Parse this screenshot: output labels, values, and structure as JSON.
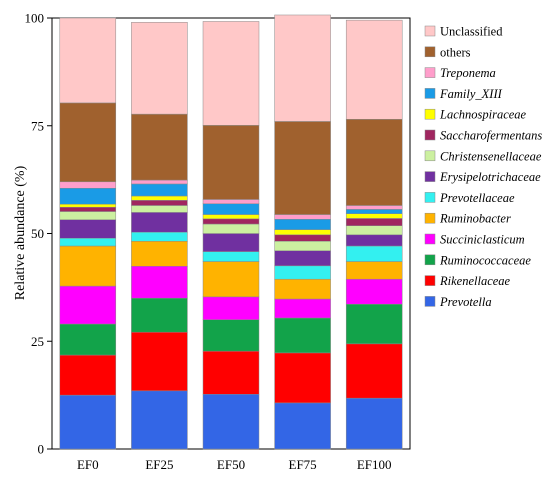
{
  "chart_data": {
    "type": "bar",
    "stacked": true,
    "title": "",
    "xlabel": "",
    "ylabel": "Relative abundance (%)",
    "ylim": [
      0,
      100
    ],
    "yticks": [
      "0",
      "25",
      "50",
      "75",
      "100"
    ],
    "categories": [
      "EF0",
      "EF25",
      "EF50",
      "EF75",
      "EF100"
    ],
    "legend_position": "right",
    "series": [
      {
        "name": "Prevotella",
        "italic": true,
        "color": "#3366e6",
        "values": [
          12.5,
          13.5,
          12.7,
          10.7,
          11.8
        ]
      },
      {
        "name": "Rikenellaceae",
        "italic": true,
        "color": "#ff0000",
        "values": [
          9.3,
          13.6,
          10.0,
          11.6,
          12.6
        ]
      },
      {
        "name": "Ruminococcaceae",
        "italic": true,
        "color": "#12a34a",
        "values": [
          7.2,
          7.9,
          7.3,
          8.1,
          9.2
        ]
      },
      {
        "name": "Succiniclasticum",
        "italic": true,
        "color": "#ff00ff",
        "values": [
          8.8,
          7.4,
          5.3,
          4.4,
          5.8
        ]
      },
      {
        "name": "Ruminobacter",
        "italic": true,
        "color": "#ffb300",
        "values": [
          9.3,
          5.8,
          8.2,
          4.6,
          4.1
        ]
      },
      {
        "name": "Prevotellaceae",
        "italic": true,
        "color": "#33f0f0",
        "values": [
          1.8,
          2.1,
          2.3,
          3.1,
          3.6
        ]
      },
      {
        "name": "Erysipelotrichaceae",
        "italic": true,
        "color": "#7030a0",
        "values": [
          4.3,
          4.6,
          4.2,
          3.5,
          2.6
        ]
      },
      {
        "name": "Christensenellaceae",
        "italic": true,
        "color": "#ccf0a0",
        "values": [
          1.9,
          1.6,
          2.2,
          2.2,
          2.1
        ]
      },
      {
        "name": "Saccharofermentans",
        "italic": true,
        "color": "#a0265f",
        "values": [
          1.0,
          1.2,
          1.2,
          1.5,
          1.7
        ]
      },
      {
        "name": "Lachnospiraceae",
        "italic": true,
        "color": "#ffff00",
        "values": [
          0.7,
          1.0,
          1.0,
          1.2,
          1.1
        ]
      },
      {
        "name": "Family_XIII",
        "italic": true,
        "color": "#1a9be6",
        "values": [
          3.7,
          2.8,
          2.5,
          2.4,
          1.0
        ]
      },
      {
        "name": "Treponema",
        "italic": true,
        "color": "#ff9ecb",
        "values": [
          1.5,
          0.9,
          1.0,
          1.1,
          0.9
        ]
      },
      {
        "name": "others",
        "italic": false,
        "color": "#a0612e",
        "values": [
          18.3,
          15.3,
          17.2,
          21.6,
          20.0
        ]
      },
      {
        "name": "Unclassified",
        "italic": false,
        "color": "#ffc8c8",
        "values": [
          19.7,
          21.3,
          24.1,
          24.7,
          23.0
        ]
      }
    ]
  }
}
